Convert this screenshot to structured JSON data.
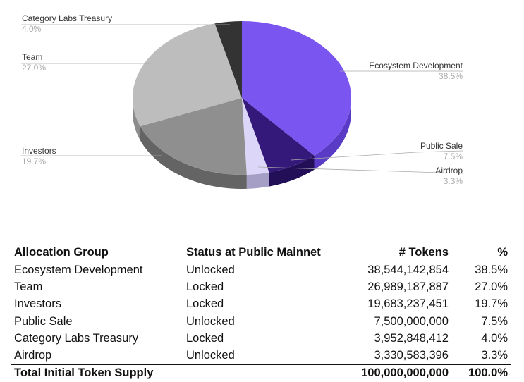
{
  "chart_data": {
    "type": "pie",
    "style": "3d",
    "slices": [
      {
        "label": "Ecosystem Development",
        "value": 38.5,
        "pct_label": "38.5%",
        "color": "#7b55f0",
        "side": "#5a3bc6"
      },
      {
        "label": "Public Sale",
        "value": 7.5,
        "pct_label": "7.5%",
        "color": "#35197a",
        "side": "#220f57"
      },
      {
        "label": "Airdrop",
        "value": 3.3,
        "pct_label": "3.3%",
        "color": "#dcd6f8",
        "side": "#a59fc6"
      },
      {
        "label": "Investors",
        "value": 19.7,
        "pct_label": "19.7%",
        "color": "#8f8f8f",
        "side": "#646464"
      },
      {
        "label": "Team",
        "value": 27.0,
        "pct_label": "27.0%",
        "color": "#bdbdbd",
        "side": "#8c8c8c"
      },
      {
        "label": "Category Labs Treasury",
        "value": 4.0,
        "pct_label": "4.0%",
        "color": "#333333",
        "side": "#1e1e1e"
      }
    ]
  },
  "table": {
    "headers": [
      "Allocation Group",
      "Status at Public Mainnet",
      "# Tokens",
      "%"
    ],
    "rows": [
      [
        "Ecosystem Development",
        "Unlocked",
        "38,544,142,854",
        "38.5%"
      ],
      [
        "Team",
        "Locked",
        "26,989,187,887",
        "27.0%"
      ],
      [
        "Investors",
        "Locked",
        "19,683,237,451",
        "19.7%"
      ],
      [
        "Public Sale",
        "Unlocked",
        "7,500,000,000",
        "7.5%"
      ],
      [
        "Category Labs Treasury",
        "Locked",
        "3,952,848,412",
        "4.0%"
      ],
      [
        "Airdrop",
        "Unlocked",
        "3,330,583,396",
        "3.3%"
      ]
    ],
    "total": [
      "Total Initial Token Supply",
      "",
      "100,000,000,000",
      "100.0%"
    ]
  }
}
